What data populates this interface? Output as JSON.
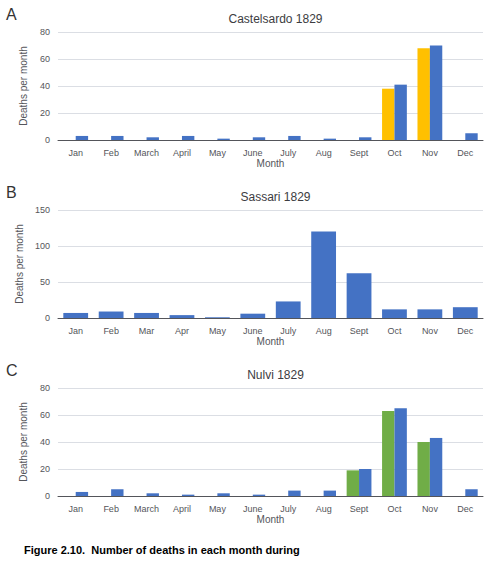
{
  "chart_data": [
    {
      "type": "bar",
      "title": "Castelsardo 1829",
      "categories": [
        "Jan",
        "Feb",
        "March",
        "April",
        "May",
        "June",
        "July",
        "Aug",
        "Sept",
        "Oct",
        "Nov",
        "Dec"
      ],
      "series": [
        {
          "color": "#FFC000",
          "values": [
            0,
            0,
            0,
            0,
            0,
            0,
            0,
            0,
            0,
            38,
            68,
            0
          ]
        },
        {
          "color": "#4472C4",
          "values": [
            3,
            3,
            2,
            3,
            1,
            2,
            3,
            1,
            2,
            41,
            70,
            5
          ]
        }
      ],
      "x_label": "Month",
      "y_label": "Deaths per month",
      "ylim": [
        0,
        80
      ],
      "yticks": [
        0,
        20,
        40,
        60,
        80
      ],
      "grid": true,
      "annotations": [
        "A"
      ]
    },
    {
      "type": "bar",
      "title": "Sassari 1829",
      "categories": [
        "Jan",
        "Feb",
        "Mar",
        "Apr",
        "May",
        "June",
        "July",
        "Aug",
        "Sept",
        "Oct",
        "Nov",
        "Dec"
      ],
      "values": [
        7,
        9,
        7,
        4,
        1,
        6,
        23,
        120,
        62,
        12,
        12,
        15
      ],
      "color": "#4472C4",
      "x_label": "Month",
      "y_label": "Deaths per month",
      "ylim": [
        0,
        150
      ],
      "yticks": [
        0,
        50,
        100,
        150
      ],
      "grid": true,
      "annotations": [
        "B"
      ]
    },
    {
      "type": "bar",
      "title": "Nulvi 1829",
      "categories": [
        "Jan",
        "Feb",
        "March",
        "April",
        "May",
        "June",
        "July",
        "Aug",
        "Sept",
        "Oct",
        "Nov",
        "Dec"
      ],
      "series": [
        {
          "color": "#70AD47",
          "values": [
            0,
            0,
            0,
            0,
            0,
            0,
            0,
            0,
            19,
            63,
            40,
            0
          ]
        },
        {
          "color": "#4472C4",
          "values": [
            3,
            5,
            2,
            1,
            2,
            1,
            4,
            4,
            20,
            65,
            43,
            5
          ]
        }
      ],
      "x_label": "Month",
      "y_label": "Deaths per month",
      "ylim": [
        0,
        80
      ],
      "yticks": [
        0,
        20,
        40,
        60,
        80
      ],
      "grid": true,
      "annotations": [
        "C"
      ]
    }
  ],
  "caption": "Figure 2.10.  Number of deaths in each month during"
}
